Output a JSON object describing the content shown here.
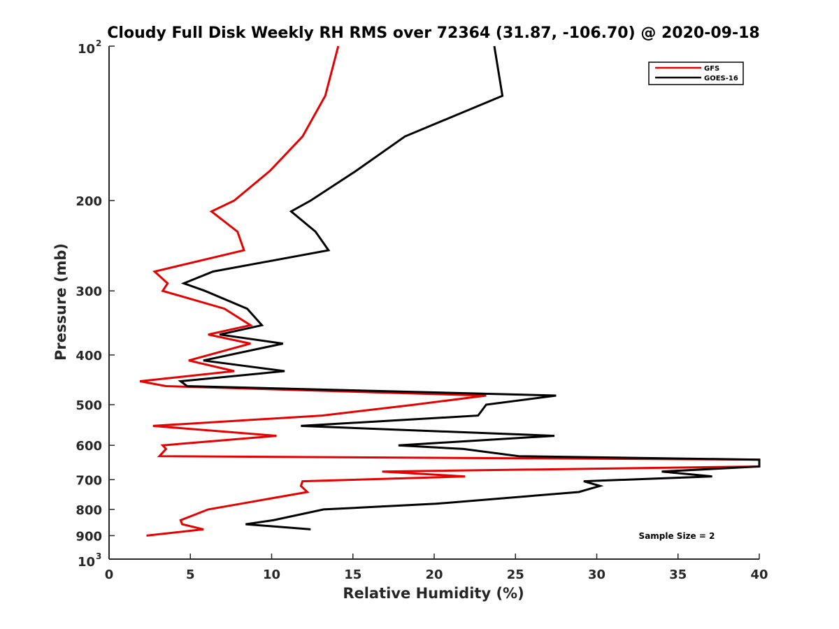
{
  "chart_data": {
    "type": "line",
    "title": "Cloudy Full Disk Weekly RH RMS over 72364 (31.87, -106.70) @ 2020-09-18",
    "xlabel": "Relative Humidity (%)",
    "ylabel": "Pressure (mb)",
    "xlim": [
      0,
      40
    ],
    "ylim": [
      100,
      1000
    ],
    "yscale": "log",
    "yreversed": true,
    "x_ticks": [
      0,
      5,
      10,
      15,
      20,
      25,
      30,
      35,
      40
    ],
    "x_tick_labels": [
      "0",
      "5",
      "10",
      "15",
      "20",
      "25",
      "30",
      "35",
      "40"
    ],
    "y_ticks": [
      {
        "value": 100,
        "base": "10",
        "exp": "2"
      },
      {
        "value": 200,
        "label": "200"
      },
      {
        "value": 300,
        "label": "300"
      },
      {
        "value": 400,
        "label": "400"
      },
      {
        "value": 500,
        "label": "500"
      },
      {
        "value": 600,
        "label": "600"
      },
      {
        "value": 700,
        "label": "700"
      },
      {
        "value": 800,
        "label": "800"
      },
      {
        "value": 900,
        "label": "900"
      },
      {
        "value": 1000,
        "base": "10",
        "exp": "3"
      }
    ],
    "grid": false,
    "legend_position": "top-right",
    "annotation": "Sample Size = 2",
    "series": [
      {
        "name": "GFS",
        "color": "#e60000",
        "points": [
          [
            14.1,
            100
          ],
          [
            13.3,
            125
          ],
          [
            11.9,
            150
          ],
          [
            9.9,
            175
          ],
          [
            7.7,
            200
          ],
          [
            6.3,
            210
          ],
          [
            7.9,
            230
          ],
          [
            8.3,
            250
          ],
          [
            2.8,
            275
          ],
          [
            3.6,
            290
          ],
          [
            3.3,
            300
          ],
          [
            7.1,
            325
          ],
          [
            8.7,
            350
          ],
          [
            6.1,
            365
          ],
          [
            8.7,
            380
          ],
          [
            4.9,
            410
          ],
          [
            7.7,
            430
          ],
          [
            1.9,
            450
          ],
          [
            3.5,
            460
          ],
          [
            23.2,
            480
          ],
          [
            18.8,
            500
          ],
          [
            13.1,
            525
          ],
          [
            2.7,
            550
          ],
          [
            10.3,
            575
          ],
          [
            3.3,
            600
          ],
          [
            3.5,
            610
          ],
          [
            3.1,
            630
          ],
          [
            40,
            640
          ],
          [
            40,
            660
          ],
          [
            16.8,
            675
          ],
          [
            21.9,
            690
          ],
          [
            11.9,
            705
          ],
          [
            11.8,
            720
          ],
          [
            12.2,
            740
          ],
          [
            8.1,
            780
          ],
          [
            6.1,
            800
          ],
          [
            4.4,
            840
          ],
          [
            4.5,
            855
          ],
          [
            5.8,
            875
          ],
          [
            2.3,
            900
          ]
        ]
      },
      {
        "name": "GOES-16",
        "color": "#000000",
        "points": [
          [
            23.7,
            100
          ],
          [
            24.2,
            125
          ],
          [
            18.2,
            150
          ],
          [
            15.2,
            175
          ],
          [
            12.4,
            200
          ],
          [
            11.2,
            210
          ],
          [
            12.7,
            230
          ],
          [
            13.5,
            250
          ],
          [
            6.4,
            275
          ],
          [
            4.6,
            290
          ],
          [
            5.9,
            300
          ],
          [
            8.5,
            325
          ],
          [
            9.4,
            350
          ],
          [
            6.8,
            365
          ],
          [
            10.7,
            380
          ],
          [
            5.8,
            410
          ],
          [
            10.8,
            430
          ],
          [
            4.4,
            450
          ],
          [
            4.8,
            460
          ],
          [
            27.5,
            480
          ],
          [
            23.2,
            500
          ],
          [
            22.7,
            525
          ],
          [
            11.8,
            550
          ],
          [
            27.4,
            575
          ],
          [
            17.8,
            600
          ],
          [
            21.8,
            610
          ],
          [
            25.2,
            630
          ],
          [
            40,
            640
          ],
          [
            40,
            660
          ],
          [
            34,
            675
          ],
          [
            37.1,
            690
          ],
          [
            29.2,
            705
          ],
          [
            30.2,
            720
          ],
          [
            28.9,
            740
          ],
          [
            20.1,
            780
          ],
          [
            13.2,
            800
          ],
          [
            10.1,
            840
          ],
          [
            8.4,
            855
          ],
          [
            12.4,
            875
          ]
        ]
      }
    ]
  }
}
